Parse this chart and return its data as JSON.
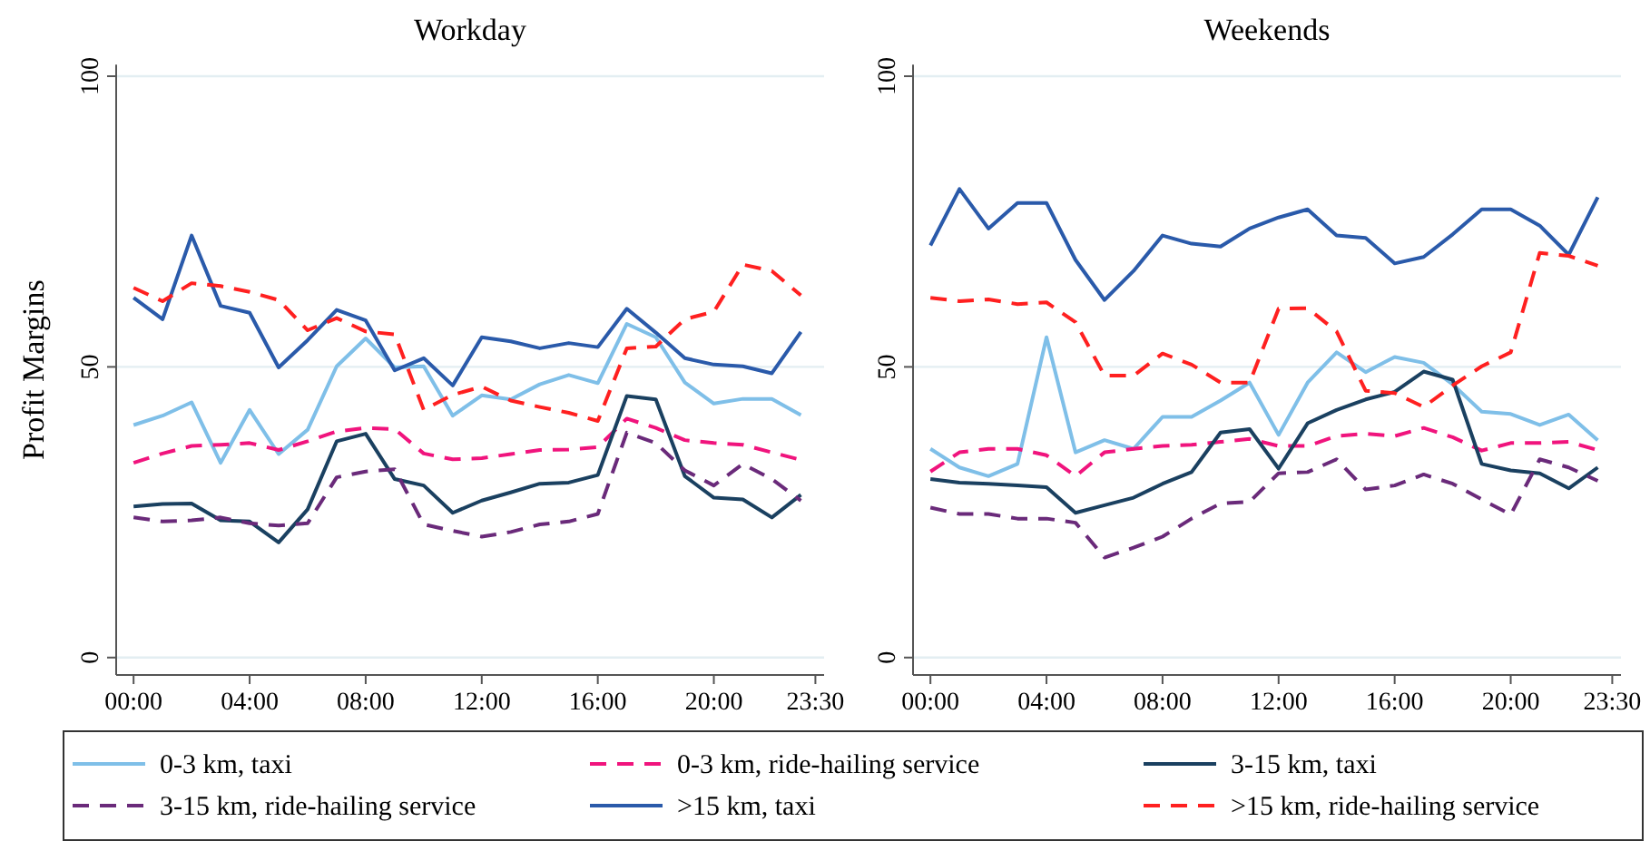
{
  "chart_data": [
    {
      "type": "line",
      "title": "Workday",
      "ylabel": "Profit Margins",
      "x": [
        0,
        1,
        2,
        3,
        4,
        5,
        6,
        7,
        8,
        9,
        10,
        11,
        12,
        13,
        14,
        15,
        16,
        17,
        18,
        19,
        20,
        21,
        22,
        23
      ],
      "xlim": [
        -0.6,
        23.8
      ],
      "xticks": [
        {
          "value": 0,
          "label": "00:00"
        },
        {
          "value": 4,
          "label": "04:00"
        },
        {
          "value": 8,
          "label": "08:00"
        },
        {
          "value": 12,
          "label": "12:00"
        },
        {
          "value": 16,
          "label": "16:00"
        },
        {
          "value": 20,
          "label": "20:00"
        },
        {
          "value": 23.5,
          "label": "23:30"
        }
      ],
      "ylim": [
        -3,
        102
      ],
      "yticks": [
        0,
        50,
        100
      ],
      "grid": "y",
      "legend": "bottom",
      "marker": "none",
      "series": [
        {
          "name": "0-3 km, taxi",
          "color": "#7fbfe8",
          "line_style": "solid",
          "values": [
            40.0,
            41.6,
            43.9,
            33.5,
            42.6,
            35.0,
            39.2,
            50.1,
            54.9,
            49.9,
            50.1,
            41.6,
            45.1,
            44.4,
            47.0,
            48.6,
            47.2,
            57.4,
            55.1,
            47.3,
            43.7,
            44.5,
            44.5,
            41.7
          ]
        },
        {
          "name": "0-3 km, ride-hailing service",
          "color": "#f0147d",
          "line_style": "dashed",
          "values": [
            33.5,
            35.1,
            36.4,
            36.6,
            36.9,
            35.7,
            37.2,
            38.9,
            39.5,
            39.3,
            35.1,
            34.1,
            34.3,
            35.0,
            35.7,
            35.8,
            36.2,
            41.1,
            39.5,
            37.4,
            36.9,
            36.6,
            35.3,
            34.0
          ]
        },
        {
          "name": "3-15 km, taxi",
          "color": "#1a4060",
          "line_style": "solid",
          "values": [
            26.0,
            26.4,
            26.5,
            23.6,
            23.4,
            19.8,
            25.5,
            37.2,
            38.5,
            30.7,
            29.6,
            24.9,
            27.0,
            28.4,
            29.9,
            30.1,
            31.4,
            45.0,
            44.4,
            31.2,
            27.5,
            27.2,
            24.1,
            28.0
          ]
        },
        {
          "name": "3-15 km, ride-hailing service",
          "color": "#6a2a7a",
          "line_style": "dashed",
          "values": [
            24.1,
            23.4,
            23.6,
            24.1,
            23.1,
            22.7,
            23.1,
            31.0,
            32.0,
            32.4,
            22.9,
            21.8,
            20.8,
            21.6,
            22.9,
            23.4,
            24.7,
            38.7,
            36.9,
            32.2,
            29.6,
            33.3,
            30.7,
            27.0
          ]
        },
        {
          "name": ">15 km, taxi",
          "color": "#2a5aaa",
          "line_style": "solid",
          "values": [
            61.9,
            58.2,
            72.6,
            60.5,
            59.3,
            49.9,
            54.6,
            59.8,
            58.0,
            49.4,
            51.5,
            46.8,
            55.1,
            54.4,
            53.2,
            54.1,
            53.4,
            60.0,
            55.9,
            51.5,
            50.4,
            50.1,
            48.9,
            56.0
          ]
        },
        {
          "name": ">15 km, ride-hailing service",
          "color": "#ff2020",
          "line_style": "dashed",
          "values": [
            63.6,
            61.3,
            64.4,
            63.9,
            62.9,
            61.5,
            56.3,
            58.4,
            56.1,
            55.6,
            42.6,
            45.2,
            46.6,
            44.2,
            43.1,
            42.1,
            40.7,
            53.2,
            53.5,
            58.2,
            59.5,
            67.6,
            66.5,
            62.3
          ]
        }
      ]
    },
    {
      "type": "line",
      "title": "Weekends",
      "x": [
        0,
        1,
        2,
        3,
        4,
        5,
        6,
        7,
        8,
        9,
        10,
        11,
        12,
        13,
        14,
        15,
        16,
        17,
        18,
        19,
        20,
        21,
        22,
        23
      ],
      "xlim": [
        -0.6,
        23.8
      ],
      "xticks": [
        {
          "value": 0,
          "label": "00:00"
        },
        {
          "value": 4,
          "label": "04:00"
        },
        {
          "value": 8,
          "label": "08:00"
        },
        {
          "value": 12,
          "label": "12:00"
        },
        {
          "value": 16,
          "label": "16:00"
        },
        {
          "value": 20,
          "label": "20:00"
        },
        {
          "value": 23.5,
          "label": "23:30"
        }
      ],
      "ylim": [
        -3,
        102
      ],
      "yticks": [
        0,
        50,
        100
      ],
      "grid": "y",
      "marker": "none",
      "series": [
        {
          "color": "#7fbfe8",
          "line_style": "solid",
          "values": [
            35.9,
            32.7,
            31.2,
            33.3,
            55.1,
            35.3,
            37.4,
            35.9,
            41.4,
            41.4,
            44.2,
            47.3,
            38.3,
            47.3,
            52.5,
            49.1,
            51.7,
            50.7,
            47.0,
            42.3,
            41.9,
            40.0,
            41.8,
            37.4
          ]
        },
        {
          "color": "#f0147d",
          "line_style": "dashed",
          "values": [
            32.0,
            35.3,
            35.9,
            35.9,
            34.8,
            31.2,
            35.3,
            35.9,
            36.4,
            36.6,
            37.1,
            37.6,
            36.4,
            36.4,
            38.1,
            38.5,
            38.1,
            39.5,
            37.9,
            35.6,
            36.9,
            36.9,
            37.1,
            35.7
          ]
        },
        {
          "color": "#1a4060",
          "line_style": "solid",
          "values": [
            30.7,
            30.1,
            29.9,
            29.6,
            29.3,
            24.9,
            26.2,
            27.5,
            29.9,
            31.9,
            38.7,
            39.3,
            32.5,
            40.3,
            42.6,
            44.4,
            45.7,
            49.2,
            47.8,
            33.3,
            32.2,
            31.7,
            29.1,
            32.7
          ]
        },
        {
          "color": "#6a2a7a",
          "line_style": "dashed",
          "values": [
            25.8,
            24.7,
            24.7,
            23.9,
            23.9,
            23.2,
            17.2,
            18.9,
            20.8,
            23.9,
            26.5,
            26.8,
            31.7,
            31.9,
            34.1,
            28.9,
            29.6,
            31.5,
            29.9,
            27.2,
            24.6,
            34.1,
            32.7,
            30.4
          ]
        },
        {
          "color": "#2a5aaa",
          "line_style": "solid",
          "values": [
            70.9,
            80.6,
            73.8,
            78.2,
            78.2,
            68.4,
            61.5,
            66.5,
            72.6,
            71.2,
            70.7,
            73.8,
            75.7,
            77.1,
            72.6,
            72.2,
            67.8,
            68.9,
            72.8,
            77.1,
            77.1,
            74.3,
            69.3,
            79.2
          ]
        },
        {
          "color": "#ff2020",
          "line_style": "dashed",
          "values": [
            61.9,
            61.3,
            61.6,
            60.8,
            61.1,
            57.7,
            48.5,
            48.5,
            52.3,
            50.4,
            47.3,
            47.3,
            60.0,
            60.1,
            56.1,
            45.9,
            45.5,
            43.1,
            46.8,
            50.1,
            52.5,
            69.6,
            69.1,
            67.4
          ]
        }
      ]
    }
  ]
}
